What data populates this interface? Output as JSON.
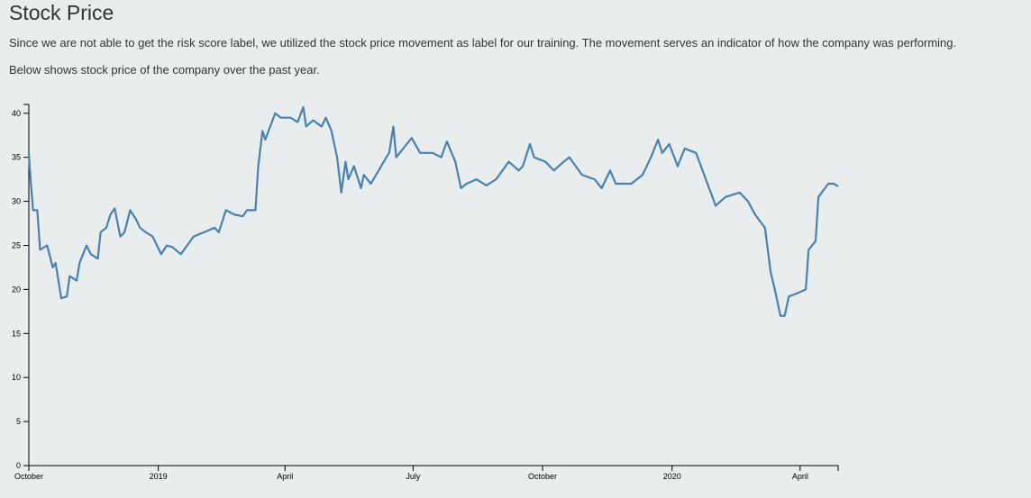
{
  "title": "Stock Price",
  "paragraphs": [
    "Since we are not able to get the risk score label, we utilized the stock price movement as label for our training. The movement serves an indicator of how the company was performing.",
    "Below shows stock price of the company over the past year."
  ],
  "chart_data": {
    "type": "line",
    "color": "#4682b4",
    "x": [
      "2018-10-01",
      "2018-10-02",
      "2018-10-04",
      "2018-10-07",
      "2018-10-09",
      "2018-10-14",
      "2018-10-18",
      "2018-10-20",
      "2018-10-24",
      "2018-10-28",
      "2018-10-30",
      "2018-11-04",
      "2018-11-06",
      "2018-11-11",
      "2018-11-14",
      "2018-11-19",
      "2018-11-21",
      "2018-11-25",
      "2018-11-28",
      "2018-12-01",
      "2018-12-05",
      "2018-12-08",
      "2018-12-12",
      "2018-12-16",
      "2018-12-19",
      "2018-12-23",
      "2018-12-28",
      "2019-01-03",
      "2019-01-07",
      "2019-01-11",
      "2019-01-17",
      "2019-01-26",
      "2019-02-10",
      "2019-02-13",
      "2019-02-18",
      "2019-02-24",
      "2019-03-02",
      "2019-03-05",
      "2019-03-11",
      "2019-03-13",
      "2019-03-16",
      "2019-03-18",
      "2019-03-25",
      "2019-03-29",
      "2019-04-05",
      "2019-04-10",
      "2019-04-14",
      "2019-04-16",
      "2019-04-21",
      "2019-04-27",
      "2019-04-30",
      "2019-05-04",
      "2019-05-08",
      "2019-05-11",
      "2019-05-14",
      "2019-05-16",
      "2019-05-20",
      "2019-05-25",
      "2019-05-27",
      "2019-06-01",
      "2019-06-12",
      "2019-06-14",
      "2019-06-17",
      "2019-06-19",
      "2019-06-24",
      "2019-06-30",
      "2019-07-06",
      "2019-07-15",
      "2019-07-21",
      "2019-07-25",
      "2019-07-31",
      "2019-08-04",
      "2019-08-08",
      "2019-08-15",
      "2019-08-22",
      "2019-08-29",
      "2019-09-07",
      "2019-09-14",
      "2019-09-17",
      "2019-09-22",
      "2019-09-25",
      "2019-10-03",
      "2019-10-09",
      "2019-10-16",
      "2019-10-20",
      "2019-10-29",
      "2019-11-07",
      "2019-11-12",
      "2019-11-18",
      "2019-11-22",
      "2019-12-03",
      "2019-12-11",
      "2019-12-17",
      "2019-12-22",
      "2019-12-25",
      "2019-12-30",
      "2020-01-05",
      "2020-01-10",
      "2020-01-18",
      "2020-02-01",
      "2020-02-08",
      "2020-02-18",
      "2020-02-24",
      "2020-02-29",
      "2020-03-07",
      "2020-03-11",
      "2020-03-14",
      "2020-03-18",
      "2020-03-21",
      "2020-03-24",
      "2020-03-29",
      "2020-04-05",
      "2020-04-07",
      "2020-04-12",
      "2020-04-14",
      "2020-04-21",
      "2020-04-25",
      "2020-04-28"
    ],
    "values": [
      35.5,
      33,
      29,
      29,
      24.5,
      25,
      22.5,
      23,
      19,
      19.2,
      21.5,
      21,
      23,
      25,
      24,
      23.5,
      26.5,
      27,
      28.5,
      29.2,
      26,
      26.5,
      29,
      28,
      27,
      26.5,
      26,
      24,
      25,
      24.8,
      24,
      26,
      27,
      26.5,
      29,
      28.5,
      28.3,
      29,
      29,
      34,
      38,
      37,
      40,
      39.5,
      39.5,
      39,
      40.7,
      38.5,
      39.2,
      38.5,
      39.5,
      38,
      35,
      31,
      34.5,
      32.5,
      34,
      31.5,
      33,
      32,
      35,
      35.5,
      38.5,
      35,
      36,
      37.2,
      35.5,
      35.5,
      35,
      36.8,
      34.5,
      31.5,
      32,
      32.5,
      31.8,
      32.5,
      34.5,
      33.5,
      34,
      36.5,
      35,
      34.5,
      33.5,
      34.5,
      35,
      33,
      32.5,
      31.5,
      33.5,
      32,
      32,
      33,
      35,
      37,
      35.5,
      36.5,
      34,
      36,
      35.5,
      29.5,
      30.5,
      31,
      30,
      28.5,
      27,
      22,
      20,
      17,
      17,
      19.2,
      19.5,
      20,
      24.5,
      25.5,
      30.5,
      32,
      32,
      31.7
    ],
    "xlim": [
      "2018-10-01",
      "2020-04-28"
    ],
    "xticks": [
      {
        "value": "2018-10-01",
        "label": "October"
      },
      {
        "value": "2019-01-01",
        "label": "2019"
      },
      {
        "value": "2019-04-01",
        "label": "April"
      },
      {
        "value": "2019-07-01",
        "label": "July"
      },
      {
        "value": "2019-10-01",
        "label": "October"
      },
      {
        "value": "2020-01-01",
        "label": "2020"
      },
      {
        "value": "2020-04-01",
        "label": "April"
      }
    ],
    "ylim": [
      0,
      41
    ],
    "yticks": [
      0,
      5,
      10,
      15,
      20,
      25,
      30,
      35,
      40
    ]
  }
}
